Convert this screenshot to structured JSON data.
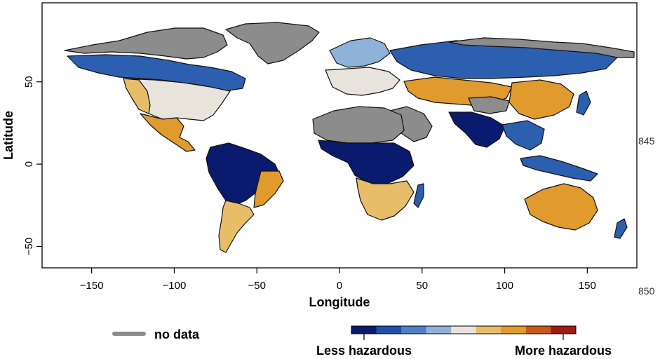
{
  "map": {
    "x_axis": {
      "title": "Longitude",
      "ticks": [
        -150,
        -100,
        -50,
        0,
        50,
        100,
        150
      ],
      "range": [
        -180,
        180
      ]
    },
    "y_axis": {
      "title": "Latitude",
      "ticks": [
        50,
        0,
        -50
      ],
      "range": [
        -63,
        98
      ]
    },
    "line_numbers": [
      "845",
      "850"
    ]
  },
  "legend": {
    "no_data_label": "no data",
    "no_data_color": "#8c8c8c",
    "scale_low_label": "Less hazardous",
    "scale_high_label": "More hazardous",
    "scale_colors": [
      "#0a1a6e",
      "#1f4fa8",
      "#4d7fc4",
      "#8fb2d8",
      "#e8e4dc",
      "#e8bd6a",
      "#e09a2e",
      "#c8581c",
      "#9e1a12"
    ]
  },
  "palette": {
    "ocean": "#ffffff",
    "no_data": "#8c8c8c",
    "deep_blue": "#0a1a6e",
    "blue": "#2d5fb0",
    "light_blue": "#8fb2d8",
    "neutral": "#e8e4dc",
    "yellow": "#e8bd6a",
    "orange": "#e09a2e",
    "red_orange": "#c8581c"
  }
}
